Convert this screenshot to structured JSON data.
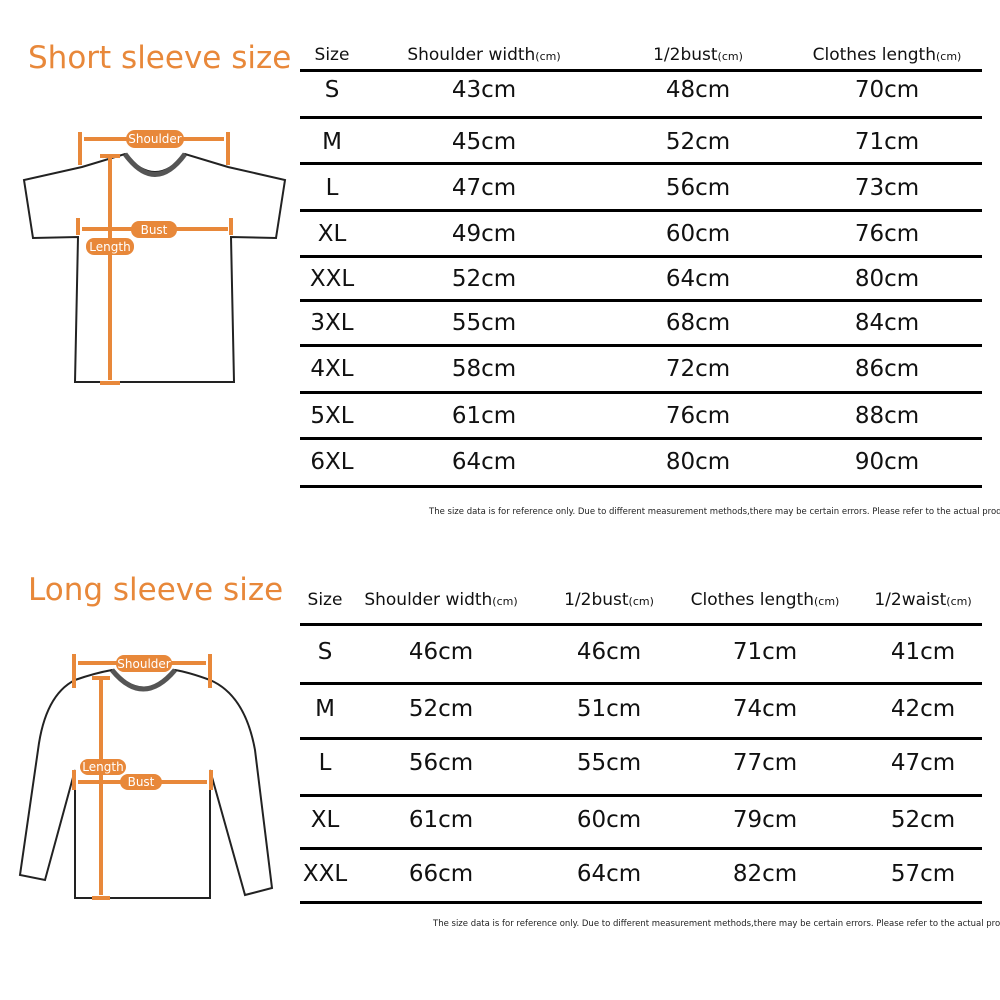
{
  "short_sleeve": {
    "title": "Short sleeve size",
    "diagram_labels": {
      "shoulder": "Shoulder",
      "bust": "Bust",
      "length": "Length"
    },
    "headers": [
      {
        "label": "Size",
        "unit": ""
      },
      {
        "label": "Shoulder width",
        "unit": "(cm)"
      },
      {
        "label": "1/2bust",
        "unit": "(cm)"
      },
      {
        "label": "Clothes length",
        "unit": "(cm)"
      }
    ],
    "rows": [
      [
        "S",
        "43cm",
        "48cm",
        "70cm"
      ],
      [
        "M",
        "45cm",
        "52cm",
        "71cm"
      ],
      [
        "L",
        "47cm",
        "56cm",
        "73cm"
      ],
      [
        "XL",
        "49cm",
        "60cm",
        "76cm"
      ],
      [
        "XXL",
        "52cm",
        "64cm",
        "80cm"
      ],
      [
        "3XL",
        "55cm",
        "68cm",
        "84cm"
      ],
      [
        "4XL",
        "58cm",
        "72cm",
        "86cm"
      ],
      [
        "5XL",
        "61cm",
        "76cm",
        "88cm"
      ],
      [
        "6XL",
        "64cm",
        "80cm",
        "90cm"
      ]
    ],
    "note": "The size data is for reference only. Due to different measurement methods,there may be certain errors. Please refer to the actual product."
  },
  "long_sleeve": {
    "title": "Long sleeve size",
    "diagram_labels": {
      "shoulder": "Shoulder",
      "bust": "Bust",
      "length": "Length"
    },
    "headers": [
      {
        "label": "Size",
        "unit": ""
      },
      {
        "label": "Shoulder width",
        "unit": "(cm)"
      },
      {
        "label": "1/2bust",
        "unit": "(cm)"
      },
      {
        "label": "Clothes length",
        "unit": "(cm)"
      },
      {
        "label": "1/2waist",
        "unit": "(cm)"
      }
    ],
    "rows": [
      [
        "S",
        "46cm",
        "46cm",
        "71cm",
        "41cm"
      ],
      [
        "M",
        "52cm",
        "51cm",
        "74cm",
        "42cm"
      ],
      [
        "L",
        "56cm",
        "55cm",
        "77cm",
        "47cm"
      ],
      [
        "XL",
        "61cm",
        "60cm",
        "79cm",
        "52cm"
      ],
      [
        "XXL",
        "66cm",
        "64cm",
        "82cm",
        "57cm"
      ]
    ],
    "note": "The size data is for reference only. Due to different measurement methods,there may be certain errors. Please refer to the actual product."
  },
  "colors": {
    "accent": "#e8883a",
    "rule": "#000000"
  }
}
